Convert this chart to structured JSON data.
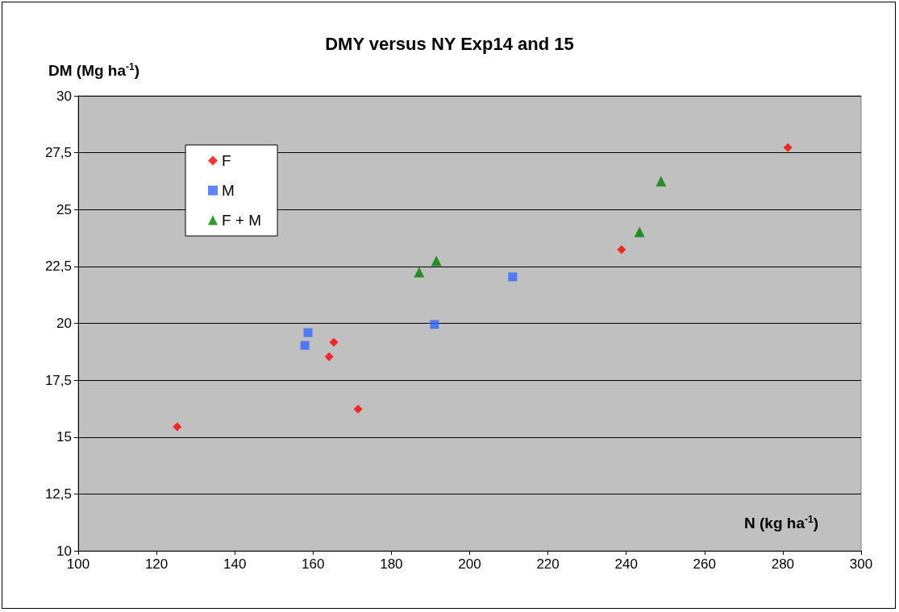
{
  "chart_data": {
    "type": "scatter",
    "title": "DMY versus NY Exp14 and 15",
    "xlabel": "N (kg ha$^{-1}$)",
    "ylabel": "DM (Mg ha$^{-1}$)",
    "series": [
      {
        "name": "F",
        "color": "#ff0000",
        "marker": "diamond",
        "x": [
          125.3,
          164.1,
          165.3,
          171.5,
          238.8,
          281.3
        ],
        "values": [
          15.45,
          18.53,
          19.17,
          16.23,
          23.24,
          27.73
        ]
      },
      {
        "name": "M",
        "color": "#3366ff",
        "marker": "square",
        "x": [
          157.9,
          158.7,
          191.0,
          211.0
        ],
        "values": [
          19.03,
          19.59,
          19.95,
          22.04
        ]
      },
      {
        "name": "F + M",
        "color": "#008000",
        "marker": "triangle",
        "x": [
          187.1,
          191.5,
          243.4,
          248.9
        ],
        "values": [
          22.25,
          22.74,
          24.02,
          26.25
        ]
      }
    ],
    "xlim": [
      100,
      300
    ],
    "xticks": [
      100,
      120,
      140,
      160,
      180,
      200,
      220,
      240,
      260,
      280,
      300
    ],
    "ylim": [
      10,
      30
    ],
    "yticks": [
      10,
      {
        "value": 12.5,
        "label": "12,5"
      },
      15,
      {
        "value": 17.5,
        "label": "17,5"
      },
      20,
      {
        "value": 22.5,
        "label": "22,5"
      },
      25,
      {
        "value": 27.5,
        "label": "27,5"
      },
      30
    ],
    "grid": "y",
    "legend": "top left"
  }
}
